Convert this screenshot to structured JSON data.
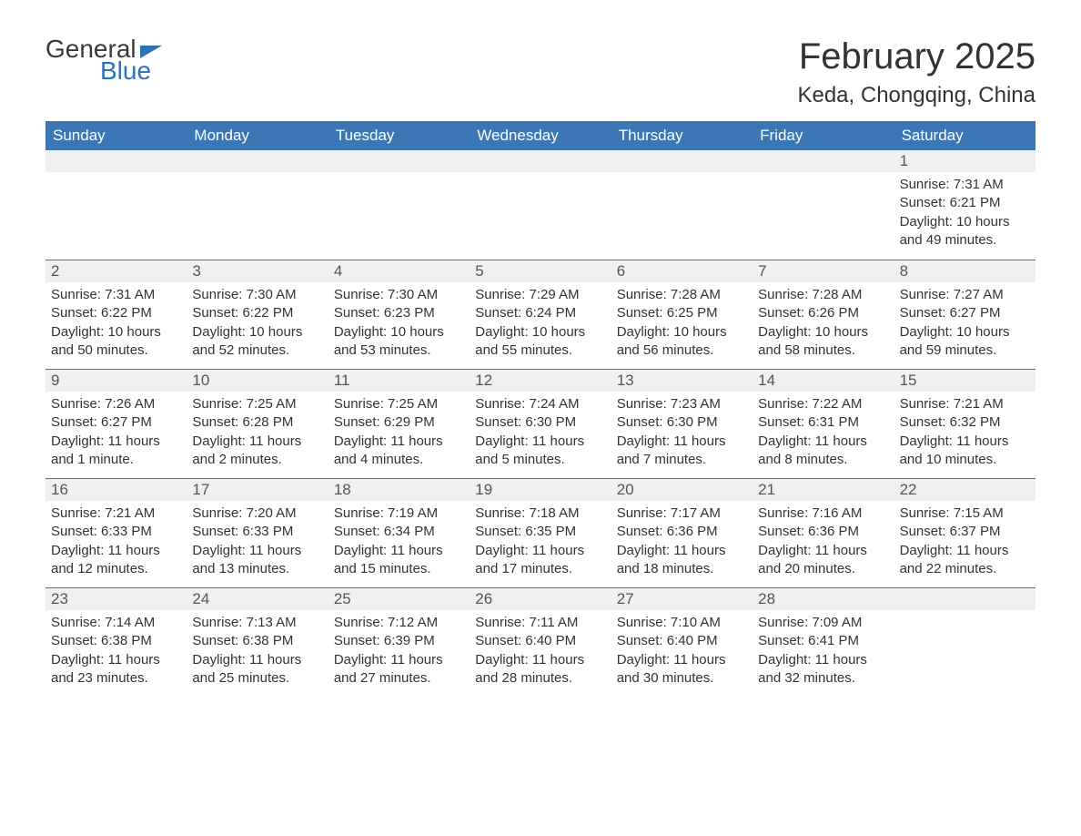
{
  "logo": {
    "text_top": "General",
    "text_bottom": "Blue"
  },
  "title": "February 2025",
  "location": "Keda, Chongqing, China",
  "colors": {
    "header_bg": "#3a77b4",
    "header_text": "#ffffff",
    "daynum_bg": "#f0f0f0",
    "daynum_text": "#555555",
    "body_text": "#333333",
    "accent": "#2f72b8",
    "page_bg": "#ffffff"
  },
  "weekdays": [
    "Sunday",
    "Monday",
    "Tuesday",
    "Wednesday",
    "Thursday",
    "Friday",
    "Saturday"
  ],
  "calendar": {
    "leading_blanks": 6,
    "days": [
      {
        "n": 1,
        "sunrise": "7:31 AM",
        "sunset": "6:21 PM",
        "daylight": "10 hours and 49 minutes."
      },
      {
        "n": 2,
        "sunrise": "7:31 AM",
        "sunset": "6:22 PM",
        "daylight": "10 hours and 50 minutes."
      },
      {
        "n": 3,
        "sunrise": "7:30 AM",
        "sunset": "6:22 PM",
        "daylight": "10 hours and 52 minutes."
      },
      {
        "n": 4,
        "sunrise": "7:30 AM",
        "sunset": "6:23 PM",
        "daylight": "10 hours and 53 minutes."
      },
      {
        "n": 5,
        "sunrise": "7:29 AM",
        "sunset": "6:24 PM",
        "daylight": "10 hours and 55 minutes."
      },
      {
        "n": 6,
        "sunrise": "7:28 AM",
        "sunset": "6:25 PM",
        "daylight": "10 hours and 56 minutes."
      },
      {
        "n": 7,
        "sunrise": "7:28 AM",
        "sunset": "6:26 PM",
        "daylight": "10 hours and 58 minutes."
      },
      {
        "n": 8,
        "sunrise": "7:27 AM",
        "sunset": "6:27 PM",
        "daylight": "10 hours and 59 minutes."
      },
      {
        "n": 9,
        "sunrise": "7:26 AM",
        "sunset": "6:27 PM",
        "daylight": "11 hours and 1 minute."
      },
      {
        "n": 10,
        "sunrise": "7:25 AM",
        "sunset": "6:28 PM",
        "daylight": "11 hours and 2 minutes."
      },
      {
        "n": 11,
        "sunrise": "7:25 AM",
        "sunset": "6:29 PM",
        "daylight": "11 hours and 4 minutes."
      },
      {
        "n": 12,
        "sunrise": "7:24 AM",
        "sunset": "6:30 PM",
        "daylight": "11 hours and 5 minutes."
      },
      {
        "n": 13,
        "sunrise": "7:23 AM",
        "sunset": "6:30 PM",
        "daylight": "11 hours and 7 minutes."
      },
      {
        "n": 14,
        "sunrise": "7:22 AM",
        "sunset": "6:31 PM",
        "daylight": "11 hours and 8 minutes."
      },
      {
        "n": 15,
        "sunrise": "7:21 AM",
        "sunset": "6:32 PM",
        "daylight": "11 hours and 10 minutes."
      },
      {
        "n": 16,
        "sunrise": "7:21 AM",
        "sunset": "6:33 PM",
        "daylight": "11 hours and 12 minutes."
      },
      {
        "n": 17,
        "sunrise": "7:20 AM",
        "sunset": "6:33 PM",
        "daylight": "11 hours and 13 minutes."
      },
      {
        "n": 18,
        "sunrise": "7:19 AM",
        "sunset": "6:34 PM",
        "daylight": "11 hours and 15 minutes."
      },
      {
        "n": 19,
        "sunrise": "7:18 AM",
        "sunset": "6:35 PM",
        "daylight": "11 hours and 17 minutes."
      },
      {
        "n": 20,
        "sunrise": "7:17 AM",
        "sunset": "6:36 PM",
        "daylight": "11 hours and 18 minutes."
      },
      {
        "n": 21,
        "sunrise": "7:16 AM",
        "sunset": "6:36 PM",
        "daylight": "11 hours and 20 minutes."
      },
      {
        "n": 22,
        "sunrise": "7:15 AM",
        "sunset": "6:37 PM",
        "daylight": "11 hours and 22 minutes."
      },
      {
        "n": 23,
        "sunrise": "7:14 AM",
        "sunset": "6:38 PM",
        "daylight": "11 hours and 23 minutes."
      },
      {
        "n": 24,
        "sunrise": "7:13 AM",
        "sunset": "6:38 PM",
        "daylight": "11 hours and 25 minutes."
      },
      {
        "n": 25,
        "sunrise": "7:12 AM",
        "sunset": "6:39 PM",
        "daylight": "11 hours and 27 minutes."
      },
      {
        "n": 26,
        "sunrise": "7:11 AM",
        "sunset": "6:40 PM",
        "daylight": "11 hours and 28 minutes."
      },
      {
        "n": 27,
        "sunrise": "7:10 AM",
        "sunset": "6:40 PM",
        "daylight": "11 hours and 30 minutes."
      },
      {
        "n": 28,
        "sunrise": "7:09 AM",
        "sunset": "6:41 PM",
        "daylight": "11 hours and 32 minutes."
      }
    ],
    "labels": {
      "sunrise": "Sunrise: ",
      "sunset": "Sunset: ",
      "daylight": "Daylight: "
    }
  }
}
